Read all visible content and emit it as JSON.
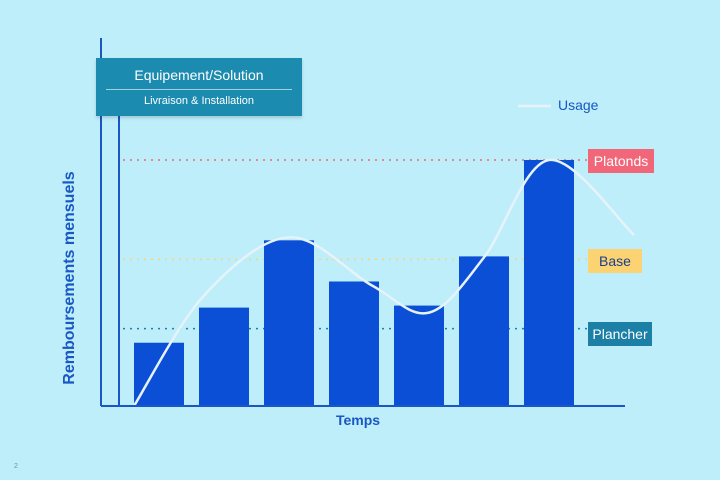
{
  "chart_data": {
    "type": "bar",
    "categories": [
      "",
      "",
      "",
      "",
      "",
      "",
      ""
    ],
    "values": [
      63,
      98,
      165,
      124,
      100,
      149,
      245
    ],
    "ylim": [
      0,
      265
    ],
    "xlabel": "Temps",
    "ylabel": "Remboursements mensuels",
    "grid": false,
    "legend": "top-right",
    "usage_line": {
      "name": "Usage",
      "values": [
        0,
        110,
        168,
        120,
        93,
        148,
        245,
        170
      ]
    },
    "reference_lines": [
      {
        "label": "Platonds",
        "value": 245,
        "color": "#f2667a"
      },
      {
        "label": "Base",
        "value": 146,
        "color": "#fcd372"
      },
      {
        "label": "Plancher",
        "value": 77,
        "color": "#1b7fa6"
      }
    ],
    "annotation": {
      "title": "Equipement/Solution",
      "subtitle": "Livraison & Installation"
    }
  },
  "page_number": "2",
  "colors": {
    "background": "#bdeefa",
    "bar": "#0b4fd6",
    "axis": "#1a56c4",
    "usage_line": "#e6f3fb",
    "annotation_box": "#1b8bb0"
  }
}
